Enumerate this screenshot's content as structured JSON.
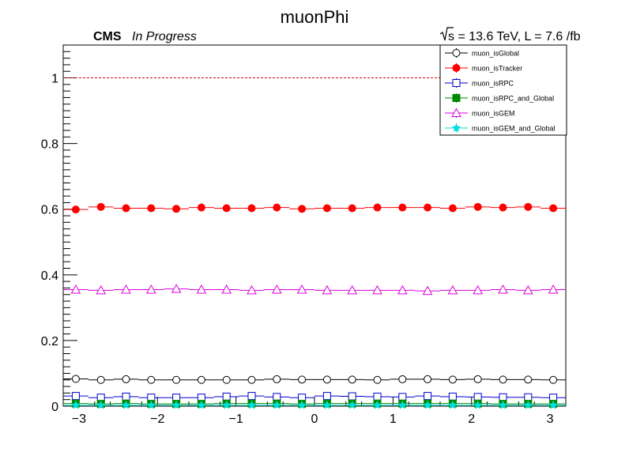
{
  "chart_data": {
    "type": "scatter",
    "title": "muonPhi",
    "experiment_label": "CMS",
    "status_label": "In Progress",
    "energy_label": "s = 13.6 TeV, L = 7.6 /fb",
    "xlabel": "",
    "ylabel": "",
    "xlim": [
      -3.2,
      3.2
    ],
    "ylim": [
      0,
      1.1
    ],
    "x_ticks": [
      -3,
      -2,
      -1,
      0,
      1,
      2,
      3
    ],
    "x_tick_labels": [
      "−3",
      "−2",
      "−1",
      "0",
      "1",
      "2",
      "3"
    ],
    "y_ticks": [
      0,
      0.2,
      0.4,
      0.6,
      0.8,
      1
    ],
    "y_tick_labels": [
      "0",
      "0.2",
      "0.4",
      "0.6",
      "0.8",
      "1"
    ],
    "reference_line": {
      "y": 1.0,
      "style": "dashed",
      "color": "#cc0000"
    },
    "grid": false,
    "legend_position": "top-right",
    "x": [
      -3.04,
      -2.72,
      -2.4,
      -2.08,
      -1.76,
      -1.44,
      -1.12,
      -0.8,
      -0.48,
      -0.16,
      0.16,
      0.48,
      0.8,
      1.12,
      1.44,
      1.76,
      2.08,
      2.4,
      2.72,
      3.04
    ],
    "series": [
      {
        "name": "muon_isGlobal",
        "color": "#000000",
        "marker": "open-circle",
        "values": [
          0.083,
          0.08,
          0.082,
          0.08,
          0.08,
          0.08,
          0.08,
          0.08,
          0.082,
          0.081,
          0.081,
          0.081,
          0.08,
          0.082,
          0.082,
          0.081,
          0.082,
          0.081,
          0.081,
          0.08
        ]
      },
      {
        "name": "muon_isTracker",
        "color": "#ff0000",
        "marker": "filled-circle",
        "values": [
          0.599,
          0.607,
          0.603,
          0.603,
          0.601,
          0.605,
          0.603,
          0.603,
          0.605,
          0.601,
          0.603,
          0.603,
          0.605,
          0.605,
          0.605,
          0.603,
          0.607,
          0.605,
          0.607,
          0.603
        ]
      },
      {
        "name": "muon_isRPC",
        "color": "#0000cc",
        "marker": "open-square",
        "values": [
          0.031,
          0.026,
          0.029,
          0.026,
          0.026,
          0.026,
          0.029,
          0.031,
          0.028,
          0.026,
          0.031,
          0.03,
          0.029,
          0.028,
          0.031,
          0.029,
          0.028,
          0.027,
          0.027,
          0.026
        ]
      },
      {
        "name": "muon_isRPC_and_Global",
        "color": "#008800",
        "marker": "filled-square",
        "values": [
          0.008,
          0.007,
          0.008,
          0.007,
          0.007,
          0.007,
          0.008,
          0.008,
          0.008,
          0.007,
          0.008,
          0.008,
          0.008,
          0.008,
          0.008,
          0.008,
          0.008,
          0.007,
          0.007,
          0.007
        ]
      },
      {
        "name": "muon_isGEM",
        "color": "#dd00dd",
        "marker": "open-triangle",
        "values": [
          0.355,
          0.353,
          0.355,
          0.355,
          0.357,
          0.355,
          0.355,
          0.353,
          0.355,
          0.355,
          0.353,
          0.353,
          0.353,
          0.353,
          0.351,
          0.353,
          0.353,
          0.355,
          0.353,
          0.355
        ]
      },
      {
        "name": "muon_isGEM_and_Global",
        "color": "#00dddd",
        "marker": "star",
        "values": [
          0.003,
          0.003,
          0.003,
          0.003,
          0.003,
          0.003,
          0.003,
          0.003,
          0.003,
          0.003,
          0.003,
          0.003,
          0.003,
          0.003,
          0.003,
          0.003,
          0.003,
          0.003,
          0.003,
          0.003
        ]
      }
    ]
  }
}
